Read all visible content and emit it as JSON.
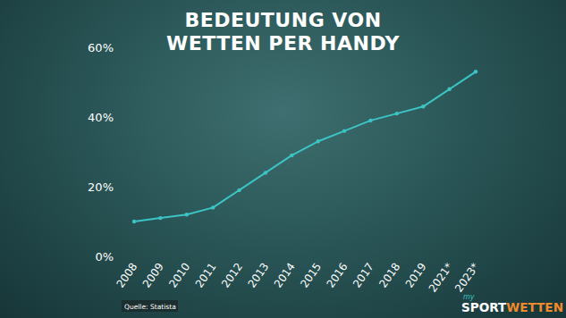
{
  "chart_data": {
    "type": "line",
    "title": "BEDEUTUNG VON WETTEN PER HANDY",
    "categories": [
      "2008",
      "2009",
      "2010",
      "2011",
      "2012",
      "2013",
      "2014",
      "2015",
      "2016",
      "2017",
      "2018",
      "2019",
      "2021*",
      "2023*"
    ],
    "values": [
      10,
      11,
      12,
      14,
      19,
      24,
      29,
      33,
      36,
      39,
      41,
      43,
      48,
      53
    ],
    "color": "#3cc4c4",
    "marker": "circle",
    "grid": false,
    "ylim": [
      0,
      60
    ],
    "yticks": [
      {
        "value": 0,
        "label": "0%"
      },
      {
        "value": 20,
        "label": "20%"
      },
      {
        "value": 40,
        "label": "40%"
      },
      {
        "value": 60,
        "label": "60%"
      }
    ],
    "source": "Quelle: Statista",
    "logo": [
      "my",
      "SPORT",
      "WETTEN"
    ]
  }
}
